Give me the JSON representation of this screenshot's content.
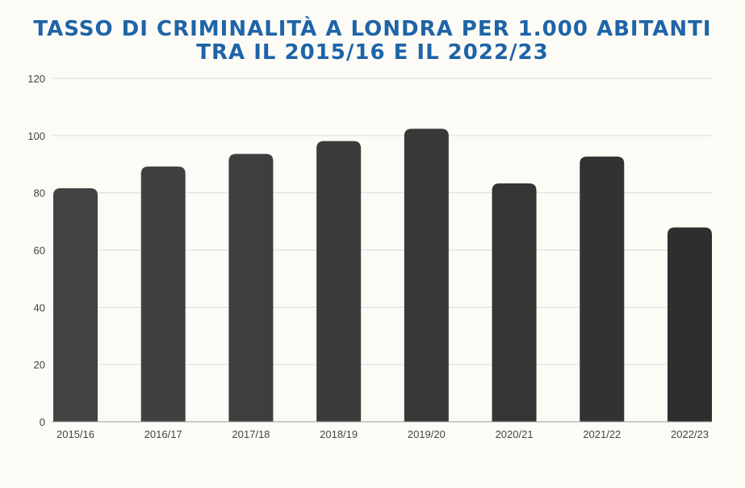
{
  "chart_data": {
    "type": "bar",
    "title_lines": [
      "TASSO DI CRIMINALITÀ A LONDRA PER 1.000 ABITANTI",
      "TRA IL 2015/16 E IL 2022/23"
    ],
    "categories": [
      "2015/16",
      "2016/17",
      "2017/18",
      "2018/19",
      "2019/20",
      "2020/21",
      "2021/22",
      "2022/23"
    ],
    "values": [
      81.6,
      89.2,
      93.6,
      98.1,
      102.4,
      83.3,
      92.7,
      67.9
    ],
    "ylim": [
      0,
      120
    ],
    "yticks": [
      "0",
      "20",
      "40",
      "60",
      "80",
      "100",
      "120"
    ],
    "grid": true,
    "colors": {
      "bar": "#3c3c3c",
      "title": "#1e64a8",
      "grid": "#dcdcdc",
      "background": "#fdfbf6"
    }
  }
}
